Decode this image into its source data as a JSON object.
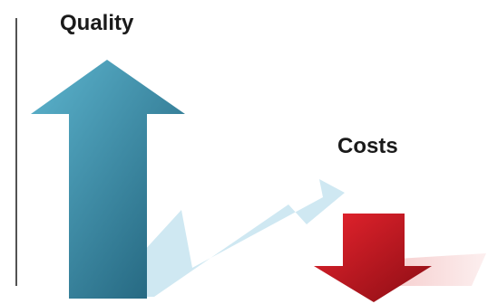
{
  "labels": {
    "quality": "Quality",
    "costs": "Costs"
  },
  "colors": {
    "up_arrow_light": "#5db5cf",
    "up_arrow_dark": "#1f5f78",
    "down_arrow_light": "#e8242e",
    "down_arrow_dark": "#8a0d14",
    "trend_arrow": "#cfe8f2",
    "shadow": "#f5c9c9",
    "axis_line": "#1a1a1a"
  },
  "icons": {
    "up_arrow": "arrow-up-icon",
    "down_arrow": "arrow-down-icon",
    "trend_arrow": "trend-arrow-icon"
  }
}
